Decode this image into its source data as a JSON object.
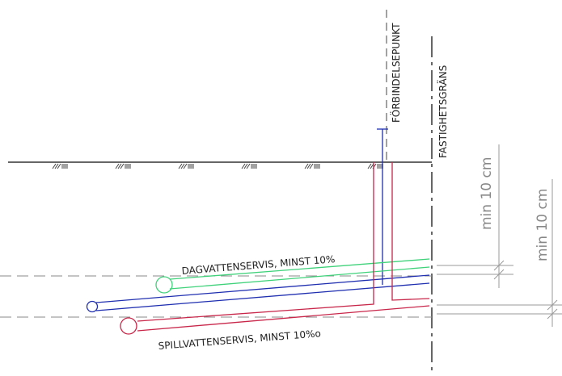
{
  "labels": {
    "connection_point": "FÖRBINDELSEPUNKT",
    "property_boundary": "FASTIGHETSGRÄNS",
    "storm_service": "DAGVATTENSERVIS, MINST 10%",
    "sewer_service": "SPILLVATTENSERVIS, MINST 10%o",
    "dim_upper": "min 10 cm",
    "dim_lower": "min 10 cm"
  },
  "colors": {
    "storm": "#3fd27a",
    "water": "#1f2fb0",
    "sewer": "#c8274a",
    "ground": "#333333",
    "dimension": "#9a9a9a",
    "dashed": "#8a8a8a"
  },
  "ground_symbol": "///≡"
}
